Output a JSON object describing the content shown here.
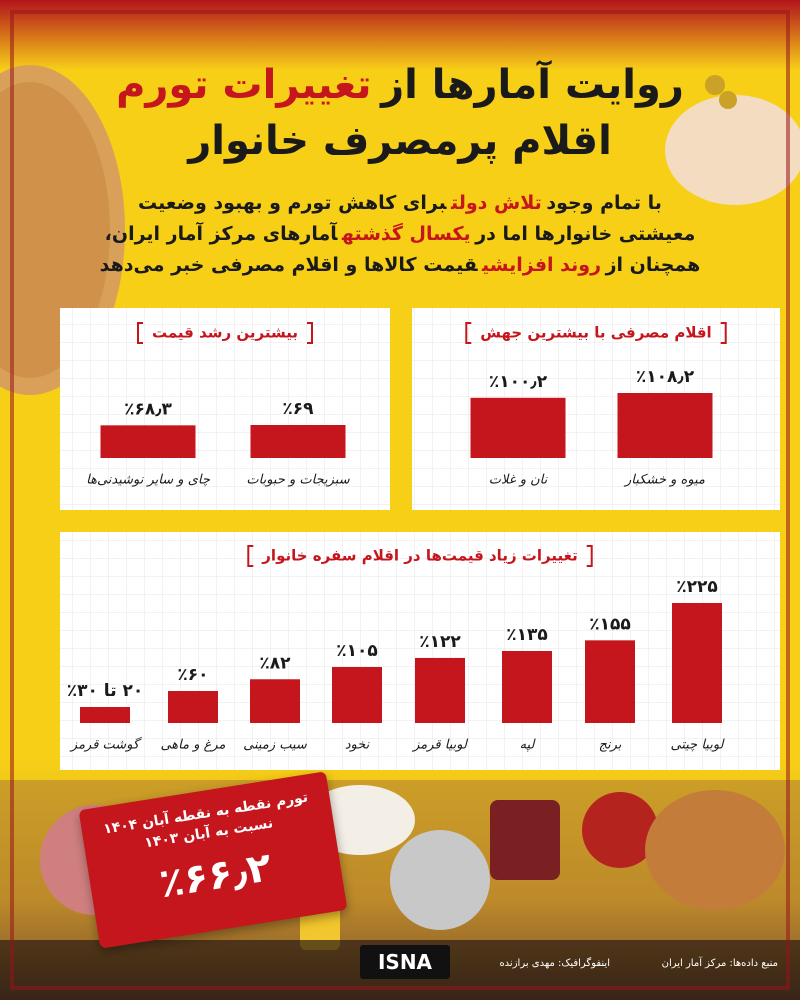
{
  "header": {
    "title_lines": [
      [
        {
          "text": "روایت آمارها از"
        },
        {
          "text": "تغییرات تورم",
          "highlight": true
        }
      ],
      [
        {
          "text": "اقلام پرمصرف خانوار"
        }
      ]
    ],
    "intro_lines": [
      [
        {
          "text": "با تمام وجود"
        },
        {
          "text": "تلاش دولت",
          "highlight": true
        },
        {
          "text": "برای کاهش تورم و بهبود وضعیت"
        }
      ],
      [
        {
          "text": "معیشتی خانوارها اما در"
        },
        {
          "text": "یکسال گذشته",
          "highlight": true
        },
        {
          "text": "آمارهای مرکز آمار ایران،"
        }
      ],
      [
        {
          "text": "همچنان از"
        },
        {
          "text": "روند افزایشی",
          "highlight": true
        },
        {
          "text": "قیمت کالاها و اقلام مصرفی خبر می‌دهد"
        }
      ]
    ]
  },
  "chart_data": [
    {
      "type": "bar",
      "title": "اقلام مصرفی با بیشترین جهش",
      "color": "#c4161c",
      "categories": [
        "میوه و خشکبار",
        "نان و غلات"
      ],
      "values": [
        108.2,
        100.2
      ],
      "value_labels": [
        "٪۱۰۸٫۲",
        "٪۱۰۰٫۲"
      ]
    },
    {
      "type": "bar",
      "title": "بیشترین رشد قیمت",
      "color": "#c4161c",
      "categories": [
        "سبزیجات و حبوبات",
        "چای و سایر نوشیدنی‌ها"
      ],
      "values": [
        69,
        68.3
      ],
      "value_labels": [
        "٪۶۹",
        "٪۶۸٫۳"
      ]
    },
    {
      "type": "bar",
      "title": "تغییرات زیاد قیمت‌ها در اقلام سفره خانوار",
      "color": "#c4161c",
      "categories": [
        "لوبیا چیتی",
        "برنج",
        "لپه",
        "لوبیا قرمز",
        "نخود",
        "سیب زمینی",
        "مرغ و ماهی",
        "گوشت قرمز"
      ],
      "values": [
        225,
        155,
        135,
        122,
        105,
        82,
        60,
        30
      ],
      "value_labels": [
        "٪۲۲۵",
        "٪۱۵۵",
        "٪۱۳۵",
        "٪۱۲۲",
        "٪۱۰۵",
        "٪۸۲",
        "٪۶۰",
        "۲۰ تا ۳۰٪"
      ]
    }
  ],
  "tag": {
    "lines": [
      "تورم نقطه به نقطه آبان ۱۴۰۴",
      "نسبت به آبان ۱۴۰۳"
    ],
    "value": "٪۶۶٫۲"
  },
  "footer": {
    "logo": "ISNA",
    "source": "منبع داده‌ها: مرکز آمار ایران",
    "designer": "اینفوگرافیک: مهدی برازنده"
  }
}
